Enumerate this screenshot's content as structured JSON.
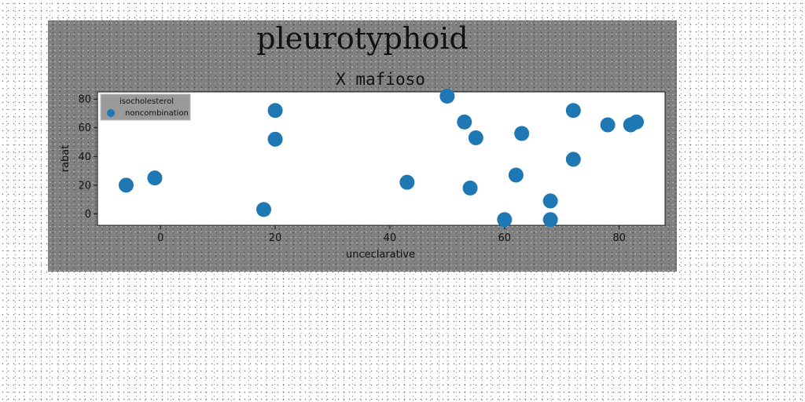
{
  "figure": {
    "suptitle": "pleurotyphoid"
  },
  "chart_data": {
    "type": "scatter",
    "title": "X mafioso",
    "xlabel": "unceclarative",
    "ylabel": "rabat",
    "xlim": [
      -11,
      88
    ],
    "ylim": [
      -8,
      85
    ],
    "xticks": [
      0,
      20,
      40,
      60,
      80
    ],
    "yticks": [
      0,
      20,
      40,
      60,
      80
    ],
    "grid": false,
    "legend_position": "upper-left",
    "series": [
      {
        "name": "isocholesterol",
        "color": "#888888",
        "x": [],
        "y": []
      },
      {
        "name": "noncombination",
        "color": "#1f77b4",
        "x": [
          -6,
          -1,
          18,
          20,
          20,
          43,
          50,
          53,
          54,
          55,
          60,
          62,
          63,
          68,
          68,
          72,
          72,
          78,
          82,
          83
        ],
        "y": [
          20,
          25,
          3,
          72,
          52,
          22,
          82,
          64,
          18,
          53,
          -4,
          27,
          56,
          9,
          -4,
          72,
          38,
          62,
          62,
          64
        ]
      }
    ]
  }
}
